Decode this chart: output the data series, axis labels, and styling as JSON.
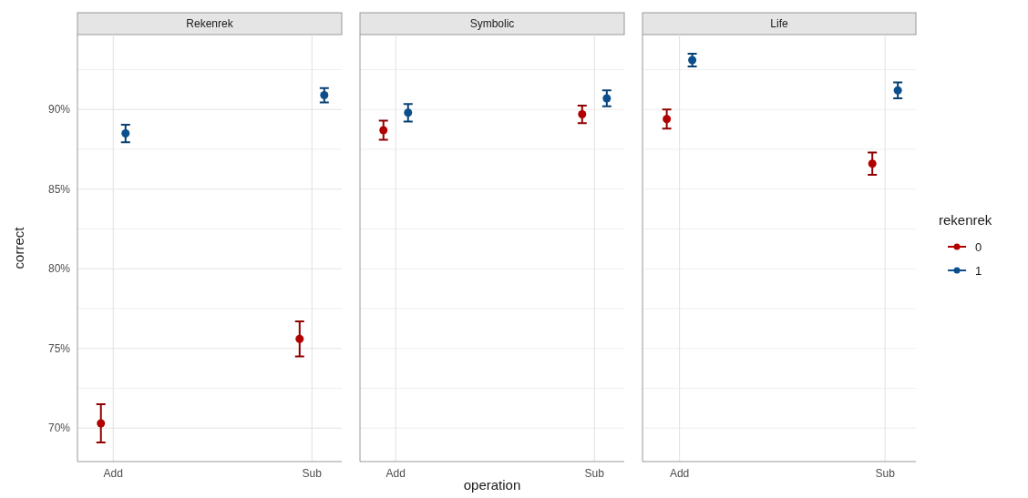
{
  "chart_data": [
    {
      "type": "scatter",
      "title": "Rekenrek",
      "ylabel": "correct",
      "categories": [
        "Add",
        "Sub"
      ],
      "ylim": [
        67.9,
        94.7
      ],
      "yticks": [
        {
          "value": 70,
          "label": "70%"
        },
        {
          "value": 72.5,
          "label": null
        },
        {
          "value": 75,
          "label": "75%"
        },
        {
          "value": 77.5,
          "label": null
        },
        {
          "value": 80,
          "label": "80%"
        },
        {
          "value": 82.5,
          "label": null
        },
        {
          "value": 85,
          "label": "85%"
        },
        {
          "value": 87.5,
          "label": null
        },
        {
          "value": 90,
          "label": "90%"
        },
        {
          "value": 92.5,
          "label": null
        }
      ],
      "grid": true,
      "marker": "circle",
      "legend": false,
      "series": [
        {
          "color": "#b20000",
          "values": [
            70.3,
            75.6
          ],
          "errors": [
            1.2,
            1.1
          ]
        },
        {
          "color": "#0b4f8c",
          "values": [
            88.5,
            90.9
          ],
          "errors": [
            0.55,
            0.45
          ]
        }
      ]
    },
    {
      "type": "scatter",
      "title": "Symbolic",
      "xlabel": "operation",
      "categories": [
        "Add",
        "Sub"
      ],
      "ylim": [
        67.9,
        94.7
      ],
      "yticks": [
        {
          "value": 70,
          "label": null
        },
        {
          "value": 72.5,
          "label": null
        },
        {
          "value": 75,
          "label": null
        },
        {
          "value": 77.5,
          "label": null
        },
        {
          "value": 80,
          "label": null
        },
        {
          "value": 82.5,
          "label": null
        },
        {
          "value": 85,
          "label": null
        },
        {
          "value": 87.5,
          "label": null
        },
        {
          "value": 90,
          "label": null
        },
        {
          "value": 92.5,
          "label": null
        }
      ],
      "tick_labels": "x",
      "grid": true,
      "marker": "circle",
      "legend": false,
      "series": [
        {
          "color": "#b20000",
          "values": [
            88.7,
            89.7
          ],
          "errors": [
            0.6,
            0.55
          ]
        },
        {
          "color": "#0b4f8c",
          "values": [
            89.8,
            90.7
          ],
          "errors": [
            0.55,
            0.5
          ]
        }
      ]
    },
    {
      "type": "scatter",
      "title": "Life",
      "legend_title": "rekenrek",
      "categories": [
        "Add",
        "Sub"
      ],
      "ylim": [
        67.9,
        94.7
      ],
      "yticks": [
        {
          "value": 70,
          "label": null
        },
        {
          "value": 72.5,
          "label": null
        },
        {
          "value": 75,
          "label": null
        },
        {
          "value": 77.5,
          "label": null
        },
        {
          "value": 80,
          "label": null
        },
        {
          "value": 82.5,
          "label": null
        },
        {
          "value": 85,
          "label": null
        },
        {
          "value": 87.5,
          "label": null
        },
        {
          "value": 90,
          "label": null
        },
        {
          "value": 92.5,
          "label": null
        }
      ],
      "tick_labels": "x",
      "grid": true,
      "marker": "circle",
      "legend": "right",
      "series": [
        {
          "name": "0",
          "color": "#b20000",
          "values": [
            89.4,
            86.6
          ],
          "errors": [
            0.6,
            0.7
          ]
        },
        {
          "name": "1",
          "color": "#0b4f8c",
          "values": [
            93.1,
            91.2
          ],
          "errors": [
            0.4,
            0.5
          ]
        }
      ]
    }
  ]
}
